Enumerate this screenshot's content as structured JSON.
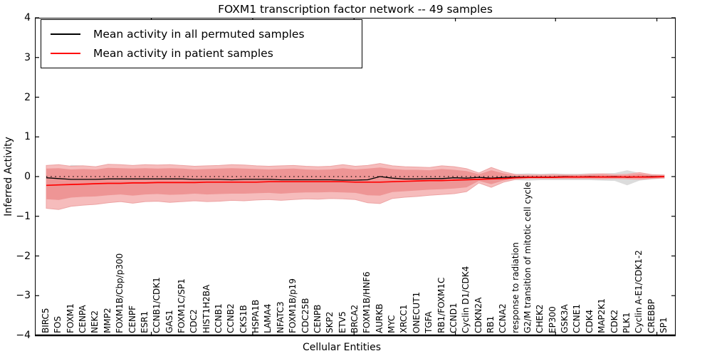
{
  "figure": {
    "title": "FOXM1 transcription factor network -- 49 samples"
  },
  "chart_data": {
    "type": "line",
    "title": "FOXM1 transcription factor network -- 49 samples",
    "xlabel": "Cellular Entities",
    "ylabel": "Inferred Activity",
    "ylim": [
      -4,
      4
    ],
    "ytick_labels": [
      "4",
      "3",
      "2",
      "1",
      "0",
      "−1",
      "−2",
      "−3",
      "−4"
    ],
    "ytick_values": [
      4,
      3,
      2,
      1,
      0,
      -1,
      -2,
      -3,
      -4
    ],
    "grid": false,
    "zero_line": {
      "style": "dotted",
      "color": "#000000",
      "y": 0
    },
    "minor_xticks_idx": [
      8.5,
      16.7,
      24.9,
      33.1,
      41.2,
      49.4
    ],
    "legend": {
      "position": "upper left",
      "items": [
        {
          "label": "Mean activity in all permuted samples",
          "color": "#000000"
        },
        {
          "label": "Mean activity in patient samples",
          "color": "#ff0000"
        }
      ]
    },
    "categories": [
      "BIRC5",
      "FOS",
      "FOXM1",
      "CENPA",
      "NEK2",
      "MMP2",
      "FOXM1B/Cbp/p300",
      "CENPF",
      "ESR1",
      "CCNB1/CDK1",
      "GAS1",
      "FOXM1C/SP1",
      "CDC2",
      "HIST1H2BA",
      "CCNB1",
      "CCNB2",
      "CKS1B",
      "HSPA1B",
      "LAMA4",
      "NFATC3",
      "FOXM1B/p19",
      "CDC25B",
      "CENPB",
      "SKP2",
      "ETV5",
      "BRCA2",
      "FOXM1B/HNF6",
      "AURKB",
      "MYC",
      "XRCC1",
      "ONECUT1",
      "TGFA",
      "RB1/FOXM1C",
      "CCND1",
      "Cyclin D1/CDK4",
      "CDKN2A",
      "RB1",
      "CCNA2",
      "response to radiation",
      "G2/M transition of mitotic cell cycle",
      "CHEK2",
      "EP300",
      "GSK3A",
      "CCNE1",
      "CDK4",
      "MAP2K1",
      "CDK2",
      "PLK1",
      "Cyclin A-E1/CDK1-2",
      "CREBBP",
      "SP1"
    ],
    "series": [
      {
        "name": "Mean activity in all permuted samples",
        "color": "#000000",
        "values": [
          -0.03,
          -0.05,
          -0.07,
          -0.07,
          -0.07,
          -0.06,
          -0.06,
          -0.06,
          -0.06,
          -0.06,
          -0.06,
          -0.06,
          -0.07,
          -0.07,
          -0.07,
          -0.08,
          -0.07,
          -0.07,
          -0.07,
          -0.08,
          -0.08,
          -0.08,
          -0.08,
          -0.08,
          -0.09,
          -0.09,
          -0.08,
          0.0,
          -0.04,
          -0.06,
          -0.06,
          -0.05,
          -0.05,
          -0.03,
          -0.04,
          -0.02,
          -0.04,
          -0.02,
          -0.01,
          -0.01,
          -0.01,
          -0.01,
          0.0,
          -0.01,
          0.0,
          -0.01,
          0.0,
          -0.02,
          -0.01,
          0.0,
          0.0
        ]
      },
      {
        "name": "Mean activity in patient samples",
        "color": "#ff0000",
        "values": [
          -0.22,
          -0.21,
          -0.2,
          -0.19,
          -0.18,
          -0.17,
          -0.17,
          -0.16,
          -0.16,
          -0.15,
          -0.15,
          -0.15,
          -0.15,
          -0.14,
          -0.14,
          -0.14,
          -0.14,
          -0.14,
          -0.13,
          -0.13,
          -0.13,
          -0.13,
          -0.13,
          -0.13,
          -0.13,
          -0.14,
          -0.14,
          -0.14,
          -0.13,
          -0.12,
          -0.11,
          -0.1,
          -0.1,
          -0.09,
          -0.08,
          -0.07,
          -0.06,
          -0.05,
          -0.03,
          -0.02,
          -0.02,
          -0.02,
          -0.01,
          -0.01,
          -0.01,
          -0.01,
          -0.01,
          -0.01,
          -0.01,
          -0.01,
          0.0
        ]
      }
    ],
    "bands": [
      {
        "name": "permuted-samples-range",
        "color": "#dcdcdc",
        "upper": [
          0.1,
          0.1,
          0.29,
          0.28,
          0.1,
          0.1,
          0.1,
          0.1,
          0.1,
          0.1,
          0.1,
          0.1,
          0.1,
          0.1,
          0.1,
          0.1,
          0.1,
          0.1,
          0.1,
          0.1,
          0.1,
          0.1,
          0.1,
          0.1,
          0.1,
          0.1,
          0.1,
          0.1,
          0.1,
          0.1,
          0.1,
          0.08,
          0.08,
          0.08,
          0.08,
          0.05,
          0.07,
          0.07,
          0.07,
          0.08,
          0.07,
          0.08,
          0.07,
          0.07,
          0.08,
          0.08,
          0.09,
          0.16,
          0.09,
          0.06,
          0.05
        ],
        "lower": [
          -0.1,
          -0.1,
          -0.1,
          -0.1,
          -0.1,
          -0.1,
          -0.1,
          -0.1,
          -0.1,
          -0.1,
          -0.1,
          -0.1,
          -0.1,
          -0.1,
          -0.1,
          -0.1,
          -0.1,
          -0.1,
          -0.1,
          -0.1,
          -0.1,
          -0.1,
          -0.1,
          -0.1,
          -0.1,
          -0.1,
          -0.1,
          -0.1,
          -0.1,
          -0.1,
          -0.1,
          -0.09,
          -0.09,
          -0.09,
          -0.09,
          -0.06,
          -0.08,
          -0.08,
          -0.09,
          -0.1,
          -0.09,
          -0.09,
          -0.09,
          -0.09,
          -0.09,
          -0.1,
          -0.11,
          -0.22,
          -0.1,
          -0.07,
          -0.05
        ]
      },
      {
        "name": "patient-samples-outer-band",
        "color": "#f6bcbc",
        "edge": "#eda4a4",
        "upper": [
          0.28,
          0.3,
          0.26,
          0.27,
          0.25,
          0.31,
          0.3,
          0.28,
          0.3,
          0.29,
          0.3,
          0.28,
          0.26,
          0.27,
          0.28,
          0.3,
          0.29,
          0.27,
          0.26,
          0.27,
          0.28,
          0.26,
          0.25,
          0.26,
          0.3,
          0.26,
          0.28,
          0.33,
          0.27,
          0.25,
          0.24,
          0.23,
          0.27,
          0.25,
          0.2,
          0.09,
          0.23,
          0.12,
          0.05,
          0.04,
          0.04,
          0.05,
          0.04,
          0.04,
          0.06,
          0.07,
          0.05,
          0.06,
          0.1,
          0.05,
          0.04
        ],
        "lower": [
          -0.8,
          -0.83,
          -0.75,
          -0.72,
          -0.7,
          -0.66,
          -0.63,
          -0.67,
          -0.63,
          -0.62,
          -0.65,
          -0.63,
          -0.61,
          -0.63,
          -0.62,
          -0.6,
          -0.61,
          -0.59,
          -0.58,
          -0.6,
          -0.58,
          -0.56,
          -0.57,
          -0.55,
          -0.56,
          -0.58,
          -0.66,
          -0.68,
          -0.55,
          -0.52,
          -0.5,
          -0.47,
          -0.45,
          -0.43,
          -0.38,
          -0.16,
          -0.27,
          -0.14,
          -0.07,
          -0.05,
          -0.05,
          -0.05,
          -0.05,
          -0.05,
          -0.05,
          -0.06,
          -0.05,
          -0.06,
          -0.07,
          -0.05,
          -0.04
        ]
      },
      {
        "name": "patient-samples-inner-band",
        "color": "#ee9595",
        "upper": [
          0.2,
          0.21,
          0.18,
          0.19,
          0.18,
          0.22,
          0.21,
          0.2,
          0.21,
          0.2,
          0.21,
          0.2,
          0.18,
          0.19,
          0.2,
          0.21,
          0.2,
          0.19,
          0.18,
          0.19,
          0.2,
          0.18,
          0.17,
          0.18,
          0.21,
          0.18,
          0.2,
          0.23,
          0.19,
          0.17,
          0.17,
          0.16,
          0.19,
          0.17,
          0.14,
          0.06,
          0.16,
          0.08,
          0.03,
          0.03,
          0.03,
          0.03,
          0.03,
          0.03,
          0.04,
          0.05,
          0.03,
          0.04,
          0.07,
          0.03,
          0.03
        ],
        "lower": [
          -0.57,
          -0.59,
          -0.53,
          -0.51,
          -0.5,
          -0.47,
          -0.45,
          -0.48,
          -0.45,
          -0.44,
          -0.46,
          -0.45,
          -0.43,
          -0.45,
          -0.44,
          -0.43,
          -0.43,
          -0.42,
          -0.41,
          -0.43,
          -0.41,
          -0.4,
          -0.4,
          -0.39,
          -0.4,
          -0.41,
          -0.47,
          -0.48,
          -0.39,
          -0.37,
          -0.35,
          -0.33,
          -0.32,
          -0.3,
          -0.27,
          -0.11,
          -0.19,
          -0.1,
          -0.05,
          -0.04,
          -0.04,
          -0.04,
          -0.04,
          -0.04,
          -0.04,
          -0.04,
          -0.04,
          -0.04,
          -0.05,
          -0.04,
          -0.03
        ]
      }
    ]
  }
}
